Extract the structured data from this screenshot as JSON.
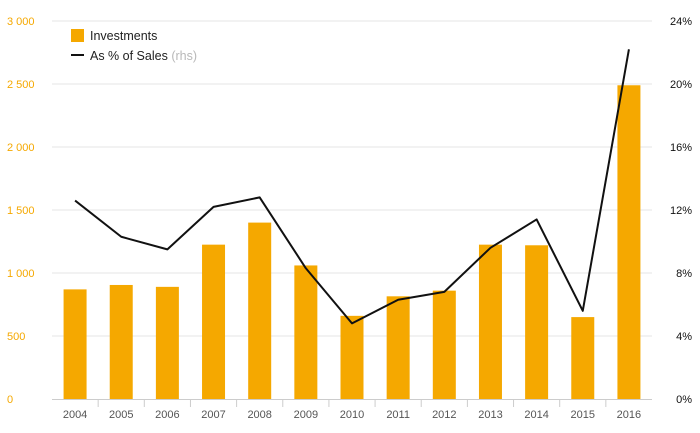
{
  "chart_data": {
    "type": "bar",
    "categories": [
      "2004",
      "2005",
      "2006",
      "2007",
      "2008",
      "2009",
      "2010",
      "2011",
      "2012",
      "2013",
      "2014",
      "2015",
      "2016"
    ],
    "series": [
      {
        "name": "Investments",
        "axis": "left",
        "type": "bar",
        "color": "#f5a800",
        "values": [
          870,
          905,
          890,
          1225,
          1400,
          1060,
          660,
          815,
          860,
          1225,
          1220,
          650,
          2490
        ]
      },
      {
        "name": "As % of Sales",
        "axis": "right",
        "type": "line",
        "color": "#111111",
        "values": [
          12.6,
          10.3,
          9.5,
          12.2,
          12.8,
          8.3,
          4.8,
          6.3,
          6.8,
          9.6,
          11.4,
          5.6,
          22.2
        ]
      }
    ],
    "legend": {
      "position": "top-left",
      "investments_label": "Investments",
      "line_label": "As % of Sales",
      "line_note": "(rhs)"
    },
    "y_left": {
      "ylim": [
        0,
        3000
      ],
      "ticks": [
        0,
        500,
        1000,
        1500,
        2000,
        2500,
        3000
      ],
      "tick_labels": [
        "0",
        "500",
        "1 000",
        "1 500",
        "2 000",
        "2 500",
        "3 000"
      ],
      "color": "#f5a800"
    },
    "y_right": {
      "ylim": [
        0,
        24
      ],
      "ticks": [
        0,
        4,
        8,
        12,
        16,
        20,
        24
      ],
      "tick_labels": [
        "0%",
        "4%",
        "8%",
        "12%",
        "16%",
        "20%",
        "24%"
      ],
      "color": "#111111"
    },
    "grid": true
  }
}
